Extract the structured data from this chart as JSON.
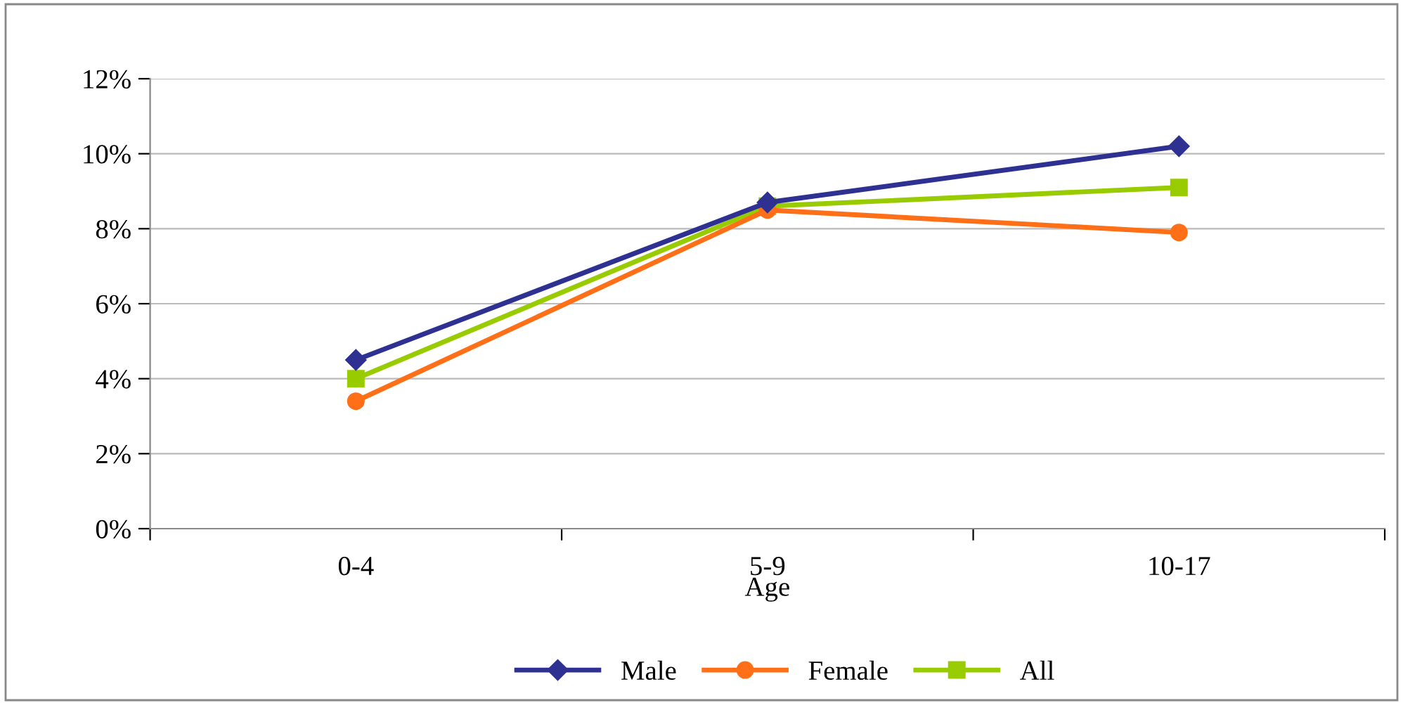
{
  "chart_data": {
    "type": "line",
    "xlabel": "Age",
    "categories": [
      "0-4",
      "5-9",
      "10-17"
    ],
    "series": [
      {
        "name": "Male",
        "color": "#2e3192",
        "marker": "diamond",
        "values": [
          4.5,
          8.7,
          10.2
        ]
      },
      {
        "name": "Female",
        "color": "#ff6f17",
        "marker": "circle",
        "values": [
          3.4,
          8.5,
          7.9
        ]
      },
      {
        "name": "All",
        "color": "#99cc00",
        "marker": "square",
        "values": [
          4.0,
          8.6,
          9.1
        ]
      }
    ],
    "ylim": [
      0,
      12
    ],
    "yticks": [
      {
        "value": 0,
        "label": "0%"
      },
      {
        "value": 2,
        "label": "2%"
      },
      {
        "value": 4,
        "label": "4%"
      },
      {
        "value": 6,
        "label": "6%"
      },
      {
        "value": 8,
        "label": "8%"
      },
      {
        "value": 10,
        "label": "10%"
      },
      {
        "value": 12,
        "label": "12%"
      }
    ],
    "grid": "y",
    "legend": "bottom",
    "line_style": "solid"
  }
}
